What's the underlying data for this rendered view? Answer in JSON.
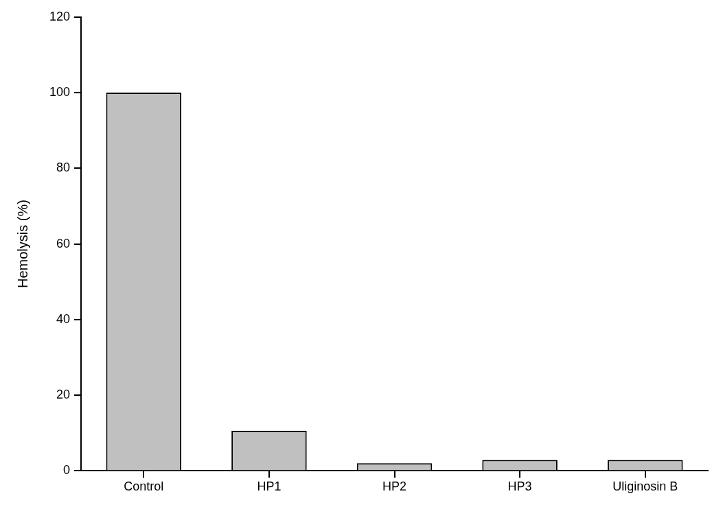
{
  "chart_data": {
    "type": "bar",
    "ylabel": "Hemolysis (%)",
    "categories": [
      "Control",
      "HP1",
      "HP2",
      "HP3",
      "Uliginosin B"
    ],
    "values": [
      100,
      10.6,
      2.0,
      2.9,
      2.9
    ],
    "color": "#c0c0c0",
    "ylim": [
      0,
      120
    ],
    "yticks": [
      0,
      20,
      40,
      60,
      80,
      100,
      120
    ],
    "grid": false,
    "legend": false
  }
}
